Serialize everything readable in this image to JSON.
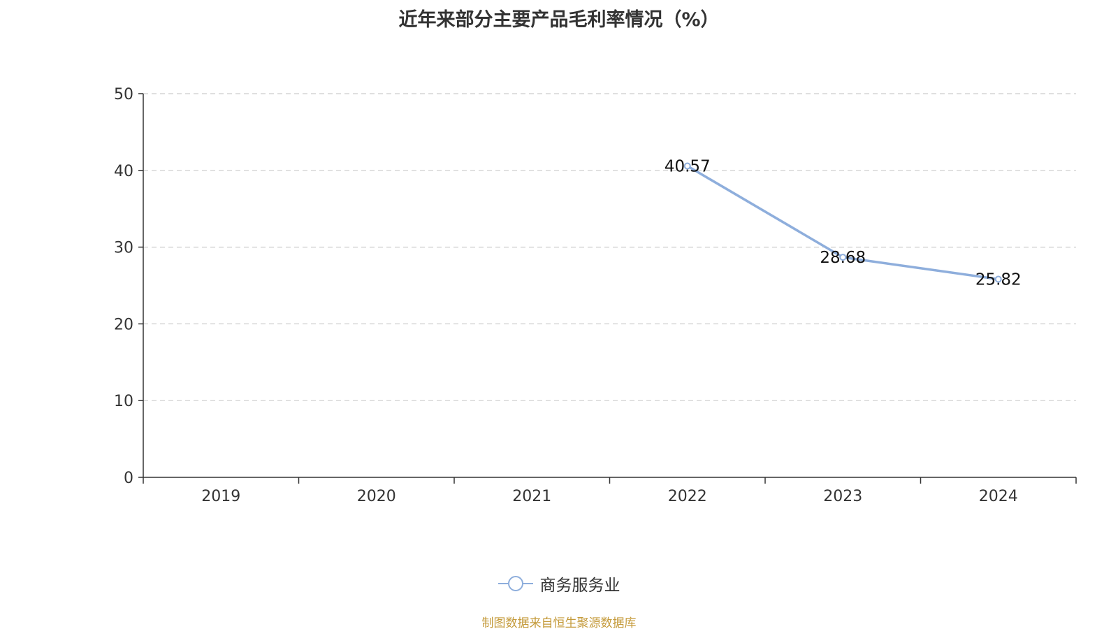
{
  "chart_data": {
    "type": "line",
    "title": "近年来部分主要产品毛利率情况（%）",
    "xlabel": "",
    "ylabel": "",
    "categories": [
      "2019",
      "2020",
      "2021",
      "2022",
      "2023",
      "2024"
    ],
    "ylim": [
      0,
      50
    ],
    "yticks": [
      0,
      10,
      20,
      30,
      40,
      50
    ],
    "grid": true,
    "legend_position": "bottom",
    "series": [
      {
        "name": "商务服务业",
        "color": "#8eaedc",
        "values": [
          null,
          null,
          null,
          40.57,
          28.68,
          25.82
        ],
        "labels": [
          "",
          "",
          "",
          "40.57",
          "28.68",
          "25.82"
        ]
      }
    ]
  },
  "footer": {
    "source": "制图数据来自恒生聚源数据库"
  }
}
